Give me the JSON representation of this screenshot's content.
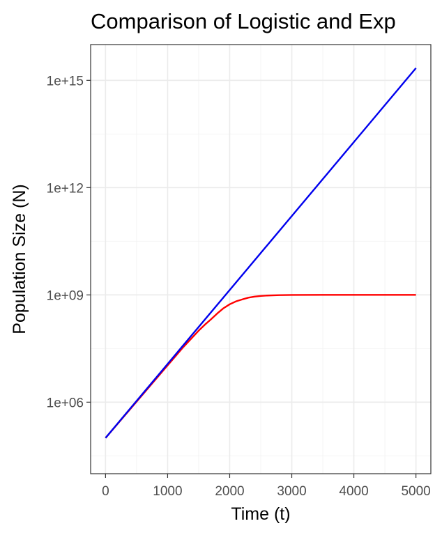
{
  "chart_data": {
    "type": "line",
    "title": "Comparison of Logistic and Exp",
    "xlabel": "Time (t)",
    "ylabel": "Population Size (N)",
    "x_scale": "linear",
    "y_scale": "log10",
    "xlim": [
      -240,
      5240
    ],
    "ylim": [
      10000.0,
      1e+16
    ],
    "x_ticks": [
      0,
      1000,
      2000,
      3000,
      4000,
      5000
    ],
    "x_tick_labels": [
      "0",
      "1000",
      "2000",
      "3000",
      "4000",
      "5000"
    ],
    "y_ticks": [
      1000000.0,
      1000000000.0,
      1000000000000.0,
      1000000000000000.0
    ],
    "y_tick_labels": [
      "1e+06",
      "1e+09",
      "1e+12",
      "1e+15"
    ],
    "grid": true,
    "legend": "none",
    "colors": {
      "logistic": "#ff0000",
      "exponential": "#0000ee"
    },
    "series": [
      {
        "type": "logistic",
        "color": "#ff0000",
        "x": [
          0,
          500,
          1000,
          1250,
          1500,
          1600,
          1700,
          1800,
          1900,
          2000,
          2100,
          2200,
          2300,
          2400,
          2500,
          2600,
          2800,
          3000,
          3500,
          4000,
          4500,
          5000
        ],
        "y": [
          100000.0,
          1035000.0,
          10700000.0,
          34300000.0,
          100000000.0,
          147000000.0,
          209000000.0,
          303000000.0,
          424000000.0,
          546000000.0,
          658000000.0,
          745000000.0,
          837000000.0,
          895000000.0,
          935000000.0,
          960000000.0,
          986000000.0,
          995000000.0,
          999800000.0,
          1000000000.0,
          1000000000.0,
          1000000000.0
        ]
      },
      {
        "type": "exponential",
        "color": "#0000ee",
        "x": [
          0,
          5000
        ],
        "y": [
          100000.0,
          2200000000000000.0
        ]
      }
    ]
  }
}
